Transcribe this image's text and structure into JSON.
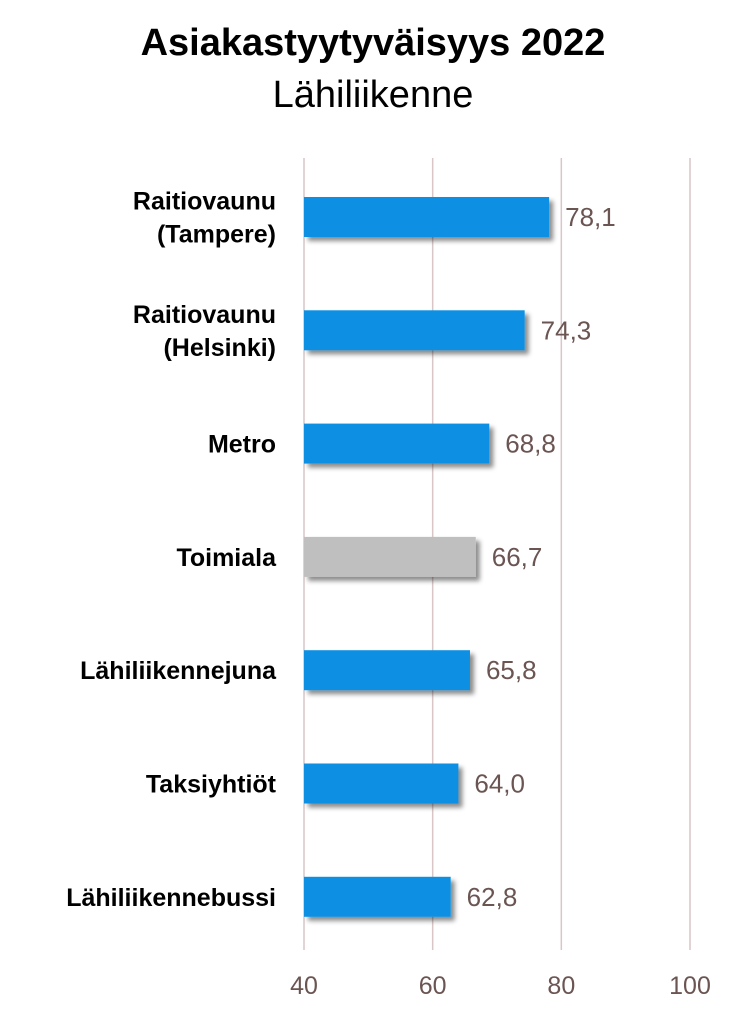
{
  "chart_data": {
    "type": "bar",
    "orientation": "horizontal",
    "title": "Asiakastyytyväisyys 2022",
    "subtitle": "Lähiliikenne",
    "categories": [
      "Raitiovaunu (Tampere)",
      "Raitiovaunu (Helsinki)",
      "Metro",
      "Toimiala",
      "Lähiliikennejuna",
      "Taksiyhtiöt",
      "Lähiliikennebussi"
    ],
    "category_lines": [
      [
        "Raitiovaunu",
        "(Tampere)"
      ],
      [
        "Raitiovaunu",
        "(Helsinki)"
      ],
      [
        "Metro"
      ],
      [
        "Toimiala"
      ],
      [
        "Lähiliikennejuna"
      ],
      [
        "Taksiyhtiöt"
      ],
      [
        "Lähiliikennebussi"
      ]
    ],
    "values": [
      78.1,
      74.3,
      68.8,
      66.7,
      65.8,
      64.0,
      62.8
    ],
    "value_labels": [
      "78,1",
      "74,3",
      "68,8",
      "66,7",
      "65,8",
      "64,0",
      "62,8"
    ],
    "bar_colors": [
      "#1090e3",
      "#1090e3",
      "#1090e3",
      "#bfbfbf",
      "#1090e3",
      "#1090e3",
      "#1090e3"
    ],
    "xlim": [
      40,
      100
    ],
    "xticks": [
      40,
      60,
      80,
      100
    ],
    "grid": "vertical",
    "gridline_color": "#d9c6c6"
  }
}
